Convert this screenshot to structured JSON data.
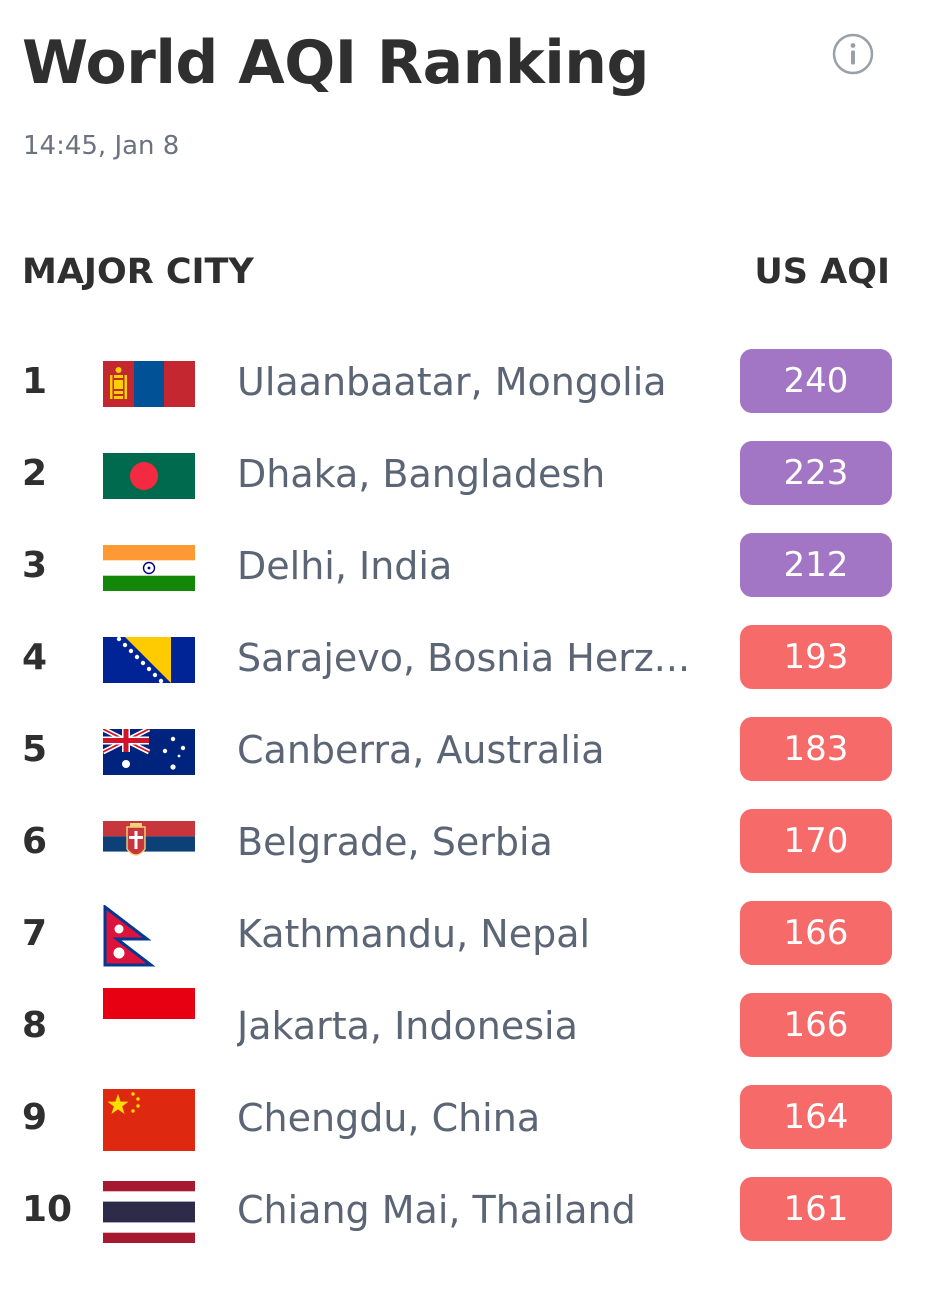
{
  "header": {
    "title": "World AQI Ranking",
    "timestamp": "14:45, Jan 8",
    "info_icon": "info-circle-icon"
  },
  "table": {
    "columns": {
      "city": "MAJOR CITY",
      "aqi": "US AQI"
    },
    "rows": [
      {
        "rank": "1",
        "flag": "mongolia-flag-icon",
        "city": "Ulaanbaatar, Mongolia",
        "aqi": "240",
        "badge_color": "#a276c4"
      },
      {
        "rank": "2",
        "flag": "bangladesh-flag-icon",
        "city": "Dhaka, Bangladesh",
        "aqi": "223",
        "badge_color": "#a276c4"
      },
      {
        "rank": "3",
        "flag": "india-flag-icon",
        "city": "Delhi, India",
        "aqi": "212",
        "badge_color": "#a276c4"
      },
      {
        "rank": "4",
        "flag": "bosnia-herzegovina-flag-icon",
        "city": "Sarajevo, Bosnia Herz...",
        "aqi": "193",
        "badge_color": "#f66a6a"
      },
      {
        "rank": "5",
        "flag": "australia-flag-icon",
        "city": "Canberra, Australia",
        "aqi": "183",
        "badge_color": "#f66a6a"
      },
      {
        "rank": "6",
        "flag": "serbia-flag-icon",
        "city": "Belgrade, Serbia",
        "aqi": "170",
        "badge_color": "#f66a6a"
      },
      {
        "rank": "7",
        "flag": "nepal-flag-icon",
        "city": "Kathmandu, Nepal",
        "aqi": "166",
        "badge_color": "#f66a6a"
      },
      {
        "rank": "8",
        "flag": "indonesia-flag-icon",
        "city": "Jakarta, Indonesia",
        "aqi": "166",
        "badge_color": "#f66a6a"
      },
      {
        "rank": "9",
        "flag": "china-flag-icon",
        "city": "Chengdu, China",
        "aqi": "164",
        "badge_color": "#f66a6a"
      },
      {
        "rank": "10",
        "flag": "thailand-flag-icon",
        "city": "Chiang Mai, Thailand",
        "aqi": "161",
        "badge_color": "#f66a6a"
      }
    ]
  },
  "colors": {
    "very_unhealthy": "#a276c4",
    "unhealthy": "#f66a6a",
    "title_text": "#2f2f2f",
    "city_text": "#5b6575",
    "timestamp_text": "#6b7280"
  }
}
